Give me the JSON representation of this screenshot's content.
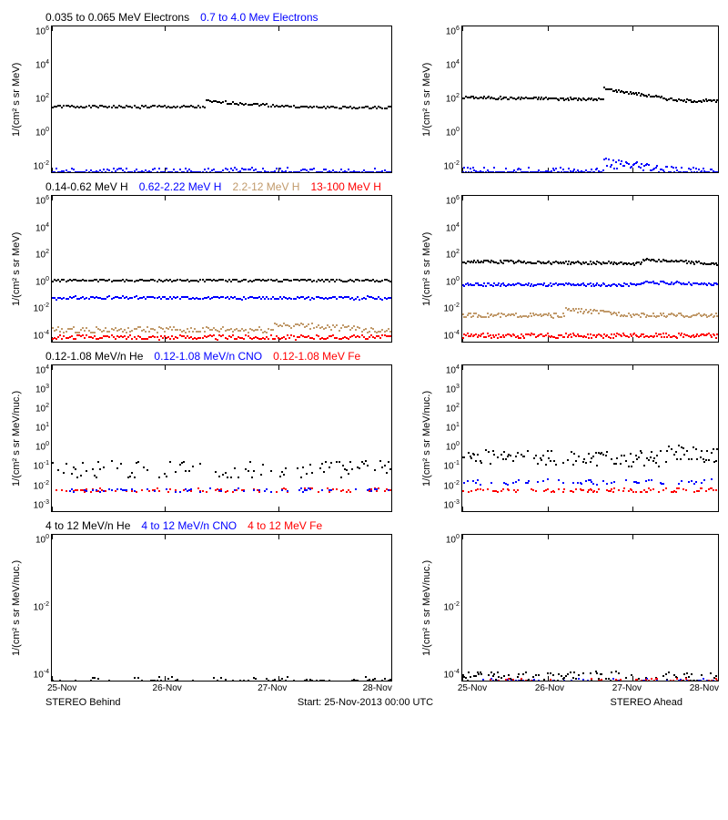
{
  "colors": {
    "black": "#000000",
    "blue": "#0000ff",
    "tan": "#c19a6b",
    "red": "#ff0000",
    "axis": "#000000"
  },
  "xaxis": {
    "ticks": [
      "25-Nov",
      "26-Nov",
      "27-Nov",
      "28-Nov"
    ],
    "n_days": 3
  },
  "footer": {
    "left": "STEREO Behind",
    "center": "Start: 25-Nov-2013 00:00 UTC",
    "right": "STEREO Ahead"
  },
  "legends": {
    "row1": [
      {
        "text": "0.035 to 0.065 MeV Electrons",
        "color": "#000000"
      },
      {
        "text": "0.7 to 4.0 Mev Electrons",
        "color": "#0000ff"
      }
    ],
    "row2": [
      {
        "text": "0.14-0.62 MeV H",
        "color": "#000000"
      },
      {
        "text": "0.62-2.22 MeV H",
        "color": "#0000ff"
      },
      {
        "text": "2.2-12 MeV H",
        "color": "#c19a6b"
      },
      {
        "text": "13-100 MeV H",
        "color": "#ff0000"
      }
    ],
    "row3": [
      {
        "text": "0.12-1.08 MeV/n He",
        "color": "#000000"
      },
      {
        "text": "0.12-1.08 MeV/n CNO",
        "color": "#0000ff"
      },
      {
        "text": "0.12-1.08 MeV Fe",
        "color": "#ff0000"
      }
    ],
    "row4": [
      {
        "text": "4 to 12 MeV/n He",
        "color": "#000000"
      },
      {
        "text": "4 to 12 MeV/n CNO",
        "color": "#0000ff"
      },
      {
        "text": "4 to 12 MeV Fe",
        "color": "#ff0000"
      }
    ]
  },
  "panels": [
    {
      "ylabel": "1/(cm² s sr MeV)",
      "height": 160,
      "ylim_log10": [
        -2,
        6
      ],
      "ytick_exp": [
        -2,
        0,
        2,
        4,
        6
      ],
      "series": [
        {
          "color": "#000000",
          "baseline_log10": 1.6,
          "noise": 0.07,
          "jump_at": 0.45,
          "jump_height": 0.3,
          "scatter": false,
          "trend": -0.05
        },
        {
          "color": "#0000ff",
          "baseline_log10": -2.0,
          "noise": 0.25,
          "jump_at": null,
          "jump_height": 0,
          "scatter": true,
          "trend": 0
        }
      ]
    },
    {
      "ylabel": "1/(cm² s sr MeV)",
      "height": 160,
      "ylim_log10": [
        -2,
        6
      ],
      "ytick_exp": [
        -2,
        0,
        2,
        4,
        6
      ],
      "series": [
        {
          "color": "#000000",
          "baseline_log10": 2.1,
          "noise": 0.07,
          "jump_at": 0.55,
          "jump_height": 0.6,
          "scatter": false,
          "trend": -0.2
        },
        {
          "color": "#0000ff",
          "baseline_log10": -2.0,
          "noise": 0.25,
          "jump_at": 0.55,
          "jump_height": 0.5,
          "scatter": true,
          "trend": 0
        }
      ]
    },
    {
      "ylabel": "1/(cm² s sr MeV)",
      "height": 160,
      "ylim_log10": [
        -4,
        6
      ],
      "ytick_exp": [
        -4,
        -2,
        0,
        2,
        4,
        6
      ],
      "series": [
        {
          "color": "#000000",
          "baseline_log10": 0.2,
          "noise": 0.08,
          "jump_at": null,
          "jump_height": 0,
          "scatter": false,
          "trend": 0
        },
        {
          "color": "#0000ff",
          "baseline_log10": -1.0,
          "noise": 0.1,
          "jump_at": null,
          "jump_height": 0,
          "scatter": false,
          "trend": 0
        },
        {
          "color": "#c19a6b",
          "baseline_log10": -3.2,
          "noise": 0.2,
          "jump_at": 0.65,
          "jump_height": 0.4,
          "scatter": true,
          "trend": 0
        },
        {
          "color": "#ff0000",
          "baseline_log10": -3.7,
          "noise": 0.15,
          "jump_at": null,
          "jump_height": 0,
          "scatter": true,
          "trend": 0
        }
      ]
    },
    {
      "ylabel": "1/(cm² s sr MeV)",
      "height": 160,
      "ylim_log10": [
        -4,
        6
      ],
      "ytick_exp": [
        -4,
        -2,
        0,
        2,
        4,
        6
      ],
      "series": [
        {
          "color": "#000000",
          "baseline_log10": 1.5,
          "noise": 0.1,
          "jump_at": 0.7,
          "jump_height": 0.3,
          "scatter": false,
          "trend": -0.2
        },
        {
          "color": "#0000ff",
          "baseline_log10": -0.1,
          "noise": 0.1,
          "jump_at": 0.7,
          "jump_height": 0.2,
          "scatter": false,
          "trend": 0
        },
        {
          "color": "#c19a6b",
          "baseline_log10": -2.2,
          "noise": 0.15,
          "jump_at": 0.4,
          "jump_height": 0.4,
          "scatter": false,
          "trend": 0
        },
        {
          "color": "#ff0000",
          "baseline_log10": -3.6,
          "noise": 0.15,
          "jump_at": null,
          "jump_height": 0,
          "scatter": true,
          "trend": 0
        }
      ]
    },
    {
      "ylabel": "1/(cm² s sr MeV/nuc.)",
      "height": 160,
      "ylim_log10": [
        -3,
        4
      ],
      "ytick_exp": [
        -3,
        -2,
        -1,
        0,
        1,
        2,
        3,
        4
      ],
      "series": [
        {
          "color": "#000000",
          "baseline_log10": -1.0,
          "noise": 0.4,
          "jump_at": null,
          "jump_height": 0,
          "scatter": true,
          "trend": 0,
          "sparse": 0.5
        },
        {
          "color": "#ff0000",
          "baseline_log10": -2.0,
          "noise": 0.1,
          "jump_at": null,
          "jump_height": 0,
          "scatter": true,
          "trend": 0,
          "sparse": 0.4
        },
        {
          "color": "#0000ff",
          "baseline_log10": -2.0,
          "noise": 0.1,
          "jump_at": null,
          "jump_height": 0,
          "scatter": true,
          "trend": 0,
          "sparse": 0.3
        }
      ]
    },
    {
      "ylabel": "1/(cm² s sr MeV/nuc.)",
      "height": 160,
      "ylim_log10": [
        -3,
        4
      ],
      "ytick_exp": [
        -3,
        -2,
        -1,
        0,
        1,
        2,
        3,
        4
      ],
      "series": [
        {
          "color": "#000000",
          "baseline_log10": -0.4,
          "noise": 0.4,
          "jump_at": 0.8,
          "jump_height": 0.4,
          "scatter": true,
          "trend": -0.1,
          "sparse": 0.7
        },
        {
          "color": "#ff0000",
          "baseline_log10": -2.0,
          "noise": 0.1,
          "jump_at": null,
          "jump_height": 0,
          "scatter": true,
          "trend": 0,
          "sparse": 0.5
        },
        {
          "color": "#0000ff",
          "baseline_log10": -1.6,
          "noise": 0.12,
          "jump_at": null,
          "jump_height": 0,
          "scatter": true,
          "trend": 0,
          "sparse": 0.3
        }
      ]
    },
    {
      "ylabel": "1/(cm² s sr MeV/nuc.)",
      "height": 160,
      "ylim_log10": [
        -4,
        0
      ],
      "ytick_exp": [
        -4,
        -2,
        0
      ],
      "series": [
        {
          "color": "#000000",
          "baseline_log10": -4.0,
          "noise": 0.1,
          "jump_at": null,
          "jump_height": 0,
          "scatter": true,
          "trend": 0,
          "sparse": 0.4
        }
      ]
    },
    {
      "ylabel": "1/(cm² s sr MeV/nuc.)",
      "height": 160,
      "ylim_log10": [
        -4,
        0
      ],
      "ytick_exp": [
        -4,
        -2,
        0
      ],
      "series": [
        {
          "color": "#000000",
          "baseline_log10": -3.9,
          "noise": 0.15,
          "jump_at": null,
          "jump_height": 0,
          "scatter": true,
          "trend": 0,
          "sparse": 0.5
        },
        {
          "color": "#0000ff",
          "baseline_log10": -4.0,
          "noise": 0.05,
          "jump_at": null,
          "jump_height": 0,
          "scatter": true,
          "trend": 0,
          "sparse": 0.2
        },
        {
          "color": "#ff0000",
          "baseline_log10": -4.0,
          "noise": 0.05,
          "jump_at": null,
          "jump_height": 0,
          "scatter": true,
          "trend": 0,
          "sparse": 0.15
        }
      ]
    }
  ]
}
